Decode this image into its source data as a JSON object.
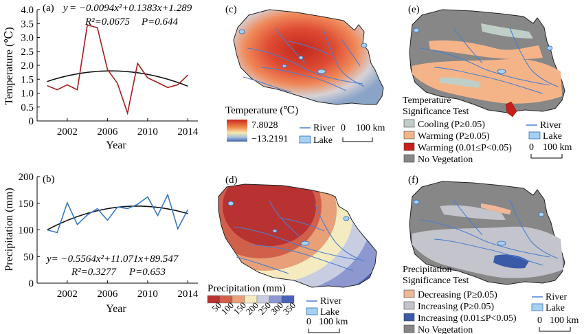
{
  "panels": {
    "a": {
      "tag": "(a)",
      "eq_y": "y",
      "eq_rest": "= −0.0094x²+0.1383x+1.289",
      "r2": "R²=0.0675",
      "p": "P=0.644",
      "ylabel": "Temperature (℃)",
      "xlabel": "Year"
    },
    "b": {
      "tag": "(b)",
      "eq": "y= −0.5564x²+11.071x+89.547",
      "r2": "R²=0.3277",
      "p": "P=0.653",
      "ylabel": "Precipitation (mm)",
      "xlabel": "Year"
    },
    "c": {
      "tag": "(c)",
      "legend_title": "Temperature (℃)",
      "max": "7.8028",
      "min": "−13.2191",
      "river": "River",
      "lake": "Lake",
      "scale": "0",
      "scale_km": "100 km"
    },
    "d": {
      "tag": "(d)",
      "legend_title": "Precipitation (mm)",
      "classes": [
        "50",
        "100",
        "150",
        "200",
        "250",
        "300",
        "350"
      ],
      "class_colors": [
        "#b83232",
        "#d0604a",
        "#e8a078",
        "#f5ebc0",
        "#c9cde2",
        "#8c98cf",
        "#4a62b8"
      ],
      "river": "River",
      "lake": "Lake",
      "scale": "0",
      "scale_km": "100 km"
    },
    "e": {
      "tag": "(e)",
      "legend_title_1": "Temperature",
      "legend_title_2": "Significance Test",
      "items": [
        {
          "label": "Cooling (P≥0.05)",
          "color": "#bfcfc8"
        },
        {
          "label": "Warming (P≥0.05)",
          "color": "#f5b488"
        },
        {
          "label": "Warming (0.01≤P<0.05)",
          "color": "#c81e1e"
        },
        {
          "label": "No Vegetation",
          "color": "#878787"
        }
      ],
      "river": "River",
      "lake": "Lake",
      "scale": "0",
      "scale_km": "100 km"
    },
    "f": {
      "tag": "(f)",
      "legend_title_1": "Precipitation",
      "legend_title_2": "Significance Test",
      "items": [
        {
          "label": "Decreasing (P≥0.05)",
          "color": "#f0b898"
        },
        {
          "label": "Increasing (P≥0.05)",
          "color": "#c4c4cc"
        },
        {
          "label": "Increasing (0.01≤P<0.05)",
          "color": "#3a5aa8"
        },
        {
          "label": "No Vegetation",
          "color": "#878787"
        }
      ],
      "river": "River",
      "lake": "Lake",
      "scale": "0",
      "scale_km": "100 km"
    }
  },
  "chart_data": [
    {
      "type": "line",
      "x": [
        2000,
        2001,
        2002,
        2003,
        2004,
        2005,
        2006,
        2007,
        2008,
        2009,
        2010,
        2011,
        2012,
        2013,
        2014
      ],
      "series": [
        {
          "values": [
            1.27,
            1.12,
            1.3,
            1.12,
            3.45,
            3.35,
            1.85,
            1.35,
            0.28,
            2.07,
            1.55,
            1.38,
            1.2,
            1.3,
            1.65
          ]
        }
      ],
      "trend": {
        "a": -0.0094,
        "b": 0.1383,
        "c": 1.289
      },
      "xlabel": "Year",
      "ylabel": "Temperature (℃)",
      "ylim": [
        0,
        4.0
      ],
      "yticks": [
        "0",
        "0.5",
        "1.0",
        "1.5",
        "2.0",
        "2.5",
        "3.0",
        "3.5",
        "4.0"
      ],
      "xticks": [
        "2002",
        "2006",
        "2010",
        "2014"
      ],
      "line_color": "#a61c1c"
    },
    {
      "type": "line",
      "x": [
        2000,
        2001,
        2002,
        2003,
        2004,
        2005,
        2006,
        2007,
        2008,
        2009,
        2010,
        2011,
        2012,
        2013,
        2014
      ],
      "series": [
        {
          "values": [
            100,
            95,
            151,
            110,
            128,
            140,
            118,
            143,
            140,
            148,
            162,
            127,
            166,
            102,
            138
          ]
        }
      ],
      "trend": {
        "a": -0.5564,
        "b": 11.071,
        "c": 89.547
      },
      "xlabel": "Year",
      "ylabel": "Precipitation (mm)",
      "ylim": [
        0,
        200
      ],
      "yticks": [
        "0",
        "50",
        "100",
        "150",
        "200"
      ],
      "xticks": [
        "2002",
        "2006",
        "2010",
        "2014"
      ],
      "line_color": "#3a78c4"
    }
  ]
}
